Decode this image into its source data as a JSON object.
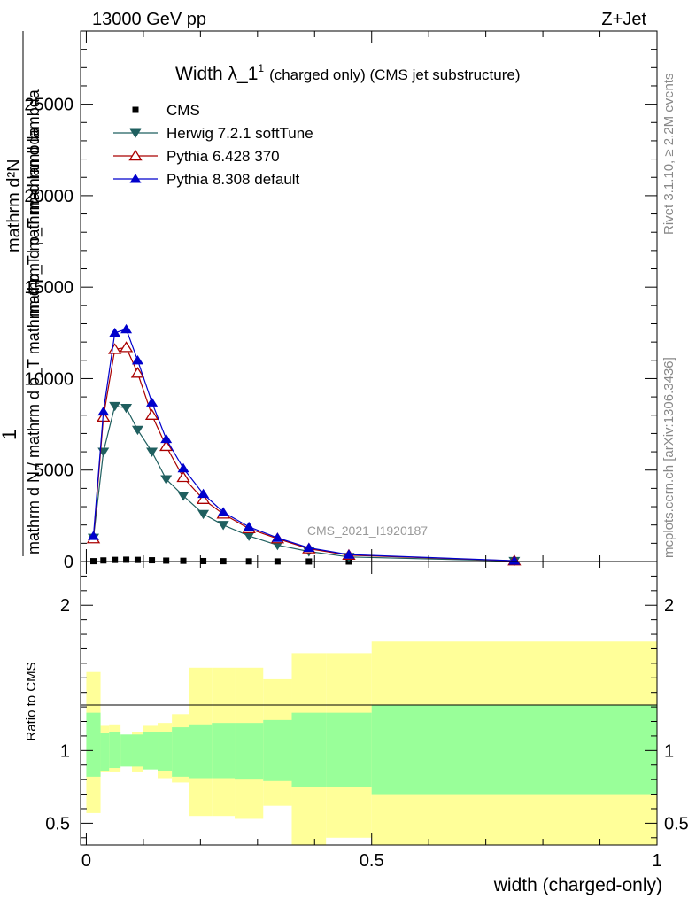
{
  "header": {
    "left": "13000 GeV pp",
    "right": "Z+Jet"
  },
  "plot": {
    "title_main": "Width λ_1",
    "title_sup": "1",
    "title_tail": "(charged only) (CMS jet substructure)",
    "watermark": "CMS_2021_I1920187",
    "side_rivet": "Rivet 3.1.10, ≥ 2.2M events",
    "side_site": "mcplots.cern.ch [arXiv:1306.3436]",
    "ylabel_lines": [
      "mathrm d²N",
      "1",
      "mathrm d N / mathrm d p_T mathrm d p_T mathrm d lambda",
      "mathrm d p_T mathrm d lambda"
    ],
    "ratio_ylabel": "Ratio to CMS",
    "xlabel": "width (charged-only)"
  },
  "chart_data": {
    "type": "line",
    "title": "Width λ_1¹ (charged only) (CMS jet substructure)",
    "xlabel": "width (charged-only)",
    "xlim": [
      -0.01,
      1.0
    ],
    "main": {
      "ylim": [
        0,
        29000
      ],
      "yticks": [
        0,
        5000,
        10000,
        15000,
        20000,
        25000
      ],
      "ytick_labels": [
        "0",
        "5000",
        "10000",
        "15000",
        "20000",
        "25000"
      ]
    },
    "ratio": {
      "ylabel": "Ratio to CMS",
      "ylim": [
        0.35,
        2.3
      ],
      "yticks": [
        0.5,
        1,
        2
      ],
      "ytick_labels": [
        "0.5",
        "1",
        "2"
      ]
    },
    "xticks": [
      0,
      0.5,
      1
    ],
    "xtick_labels": [
      "0",
      "0.5",
      "1"
    ],
    "legend_position": "top-left",
    "x": [
      0.0125,
      0.03,
      0.05,
      0.07,
      0.09,
      0.115,
      0.14,
      0.17,
      0.205,
      0.24,
      0.285,
      0.335,
      0.39,
      0.46,
      0.75
    ],
    "series": [
      {
        "name": "CMS",
        "marker": "square",
        "color": "#000000",
        "values": [
          20,
          60,
          90,
          100,
          90,
          70,
          50,
          40,
          25,
          18,
          10,
          6,
          3,
          1,
          0.2
        ]
      },
      {
        "name": "Herwig 7.2.1 softTune",
        "marker": "triangle-down",
        "color": "#1f5f5f",
        "values": [
          1300,
          6000,
          8500,
          8400,
          7200,
          6000,
          4500,
          3600,
          2600,
          2000,
          1400,
          900,
          550,
          250,
          30
        ]
      },
      {
        "name": "Pythia 6.428 370",
        "marker": "triangle-up-open",
        "color": "#aa0000",
        "values": [
          1250,
          7900,
          11600,
          11700,
          10300,
          8000,
          6300,
          4600,
          3400,
          2600,
          1800,
          1250,
          700,
          350,
          40
        ]
      },
      {
        "name": "Pythia 8.308 default",
        "marker": "triangle-up",
        "color": "#0000cc",
        "values": [
          1400,
          8200,
          12500,
          12700,
          11000,
          8700,
          6700,
          5100,
          3700,
          2700,
          1900,
          1300,
          750,
          380,
          45
        ]
      }
    ],
    "ratio_bands": {
      "bins": [
        [
          0,
          0.025
        ],
        [
          0.025,
          0.04
        ],
        [
          0.04,
          0.06
        ],
        [
          0.06,
          0.08
        ],
        [
          0.08,
          0.1
        ],
        [
          0.1,
          0.125
        ],
        [
          0.125,
          0.15
        ],
        [
          0.15,
          0.18
        ],
        [
          0.18,
          0.22
        ],
        [
          0.22,
          0.26
        ],
        [
          0.26,
          0.31
        ],
        [
          0.31,
          0.36
        ],
        [
          0.36,
          0.42
        ],
        [
          0.42,
          0.5
        ],
        [
          0.5,
          1.0
        ]
      ],
      "stat": [
        [
          0.82,
          1.26
        ],
        [
          0.86,
          1.12
        ],
        [
          0.88,
          1.13
        ],
        [
          0.89,
          1.11
        ],
        [
          0.89,
          1.11
        ],
        [
          0.87,
          1.13
        ],
        [
          0.86,
          1.13
        ],
        [
          0.82,
          1.16
        ],
        [
          0.81,
          1.18
        ],
        [
          0.81,
          1.19
        ],
        [
          0.8,
          1.19
        ],
        [
          0.79,
          1.21
        ],
        [
          0.75,
          1.26
        ],
        [
          0.75,
          1.26
        ],
        [
          0.7,
          1.31
        ]
      ],
      "total": [
        [
          0.57,
          1.54
        ],
        [
          0.85,
          1.17
        ],
        [
          0.85,
          1.18
        ],
        [
          0.9,
          1.1
        ],
        [
          0.85,
          1.13
        ],
        [
          0.91,
          1.17
        ],
        [
          0.81,
          1.19
        ],
        [
          0.78,
          1.25
        ],
        [
          0.55,
          1.57
        ],
        [
          0.55,
          1.57
        ],
        [
          0.53,
          1.57
        ],
        [
          0.62,
          1.49
        ],
        [
          0.35,
          1.67
        ],
        [
          0.4,
          1.67
        ],
        [
          0.35,
          1.75
        ]
      ],
      "stat_color": "#99ff99",
      "total_color": "#ffff99"
    }
  }
}
